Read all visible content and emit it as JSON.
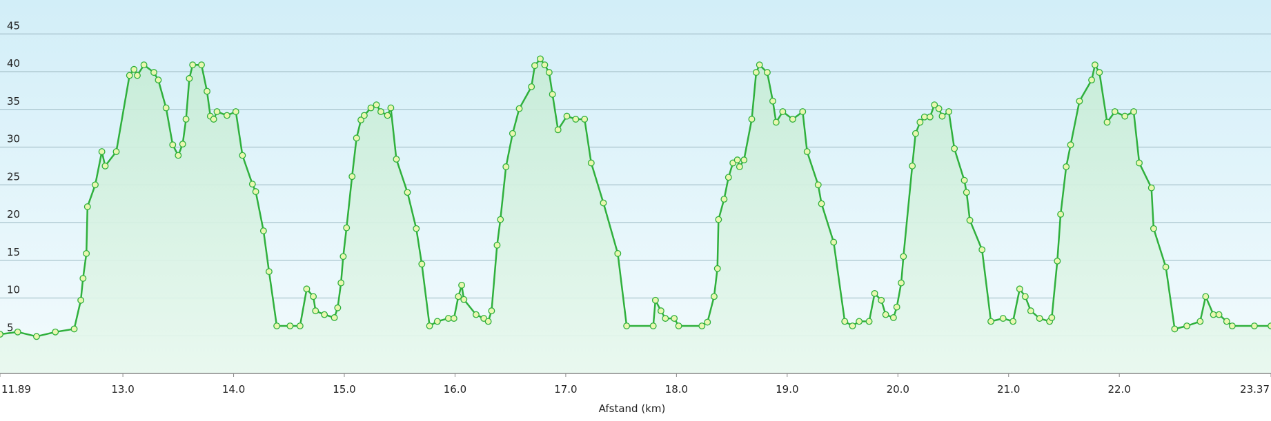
{
  "chart_data": {
    "type": "area",
    "xlabel": "Afstand  (km)",
    "x": [
      11.89,
      12.05,
      12.22,
      12.39,
      12.56,
      12.62,
      12.64,
      12.67,
      12.68,
      12.75,
      12.81,
      12.84,
      12.94,
      13.06,
      13.1,
      13.13,
      13.19,
      13.28,
      13.32,
      13.39,
      13.45,
      13.5,
      13.54,
      13.57,
      13.6,
      13.63,
      13.71,
      13.76,
      13.79,
      13.82,
      13.85,
      13.94,
      14.02,
      14.08,
      14.17,
      14.2,
      14.27,
      14.32,
      14.39,
      14.51,
      14.6,
      14.66,
      14.72,
      14.74,
      14.82,
      14.91,
      14.94,
      14.97,
      14.99,
      15.02,
      15.07,
      15.11,
      15.15,
      15.18,
      15.24,
      15.29,
      15.33,
      15.39,
      15.42,
      15.47,
      15.57,
      15.65,
      15.7,
      15.77,
      15.84,
      15.94,
      15.99,
      16.03,
      16.06,
      16.08,
      16.19,
      16.26,
      16.3,
      16.33,
      16.38,
      16.41,
      16.46,
      16.52,
      16.58,
      16.69,
      16.72,
      16.77,
      16.81,
      16.85,
      16.88,
      16.93,
      17.01,
      17.09,
      17.17,
      17.23,
      17.34,
      17.47,
      17.55,
      17.79,
      17.81,
      17.86,
      17.9,
      17.98,
      18.02,
      18.23,
      18.28,
      18.34,
      18.37,
      18.38,
      18.43,
      18.47,
      18.51,
      18.55,
      18.57,
      18.61,
      18.68,
      18.72,
      18.75,
      18.82,
      18.87,
      18.9,
      18.96,
      19.05,
      19.14,
      19.18,
      19.28,
      19.31,
      19.42,
      19.52,
      19.59,
      19.65,
      19.74,
      19.79,
      19.85,
      19.89,
      19.96,
      19.99,
      20.03,
      20.05,
      20.13,
      20.16,
      20.2,
      20.24,
      20.29,
      20.33,
      20.37,
      20.4,
      20.46,
      20.51,
      20.6,
      20.62,
      20.65,
      20.76,
      20.84,
      20.95,
      21.04,
      21.1,
      21.15,
      21.2,
      21.28,
      21.37,
      21.39,
      21.44,
      21.47,
      21.52,
      21.56,
      21.64,
      21.75,
      21.78,
      21.82,
      21.89,
      21.96,
      22.05,
      22.13,
      22.18,
      22.29,
      22.31,
      22.42,
      22.5,
      22.61,
      22.73,
      22.78,
      22.85,
      22.9,
      22.97,
      23.02,
      23.22,
      23.37
    ],
    "values": [
      5.2,
      5.5,
      4.9,
      5.5,
      5.9,
      9.7,
      12.6,
      15.9,
      22.1,
      25.0,
      29.4,
      27.5,
      29.4,
      39.5,
      40.3,
      39.5,
      40.9,
      39.9,
      38.9,
      35.2,
      30.3,
      28.9,
      30.4,
      33.7,
      39.1,
      40.9,
      40.9,
      37.4,
      34.1,
      33.7,
      34.7,
      34.2,
      34.7,
      28.9,
      25.1,
      24.1,
      18.9,
      13.5,
      6.3,
      6.3,
      6.3,
      11.2,
      10.2,
      8.3,
      7.8,
      7.4,
      8.7,
      12.0,
      15.5,
      19.3,
      26.1,
      31.2,
      33.6,
      34.2,
      35.2,
      35.6,
      34.7,
      34.2,
      35.2,
      28.4,
      24.0,
      19.2,
      14.5,
      6.3,
      6.9,
      7.3,
      7.3,
      10.2,
      11.7,
      9.8,
      7.8,
      7.3,
      6.9,
      8.3,
      17.0,
      20.4,
      27.4,
      31.8,
      35.1,
      38.0,
      40.8,
      41.7,
      40.9,
      39.9,
      37.0,
      32.3,
      34.1,
      33.7,
      33.7,
      27.9,
      22.6,
      15.9,
      6.3,
      6.3,
      9.7,
      8.3,
      7.3,
      7.3,
      6.3,
      6.3,
      6.8,
      10.2,
      13.9,
      20.4,
      23.1,
      26.0,
      27.9,
      28.3,
      27.4,
      28.3,
      33.7,
      39.9,
      40.9,
      39.9,
      36.1,
      33.3,
      34.7,
      33.7,
      34.7,
      29.4,
      25.0,
      22.5,
      17.4,
      6.9,
      6.3,
      6.9,
      6.9,
      10.6,
      9.7,
      7.8,
      7.4,
      8.8,
      12.0,
      15.5,
      27.5,
      31.8,
      33.3,
      34.0,
      34.0,
      35.6,
      35.1,
      34.1,
      34.7,
      29.8,
      25.6,
      24.0,
      20.3,
      16.4,
      6.9,
      7.3,
      6.9,
      11.2,
      10.2,
      8.3,
      7.3,
      6.9,
      7.4,
      14.9,
      21.1,
      27.4,
      30.3,
      36.1,
      38.9,
      40.9,
      39.9,
      33.3,
      34.7,
      34.1,
      34.7,
      27.9,
      24.6,
      19.2,
      14.1,
      5.9,
      6.3,
      6.9,
      10.2,
      7.8,
      7.8,
      6.9,
      6.3,
      6.3,
      6.3
    ],
    "color": "#2fb03c",
    "xlim": [
      11.89,
      23.37
    ],
    "xticks": [
      11.89,
      {
        "value": 13,
        "label": "13.0"
      },
      {
        "value": 14,
        "label": "14.0"
      },
      {
        "value": 15,
        "label": "15.0"
      },
      {
        "value": 16,
        "label": "16.0"
      },
      {
        "value": 17,
        "label": "17.0"
      },
      {
        "value": 18,
        "label": "18.0"
      },
      {
        "value": 19,
        "label": "19.0"
      },
      {
        "value": 20,
        "label": "20.0"
      },
      {
        "value": 21,
        "label": "21.0"
      },
      {
        "value": 22,
        "label": "22.0"
      },
      23.37
    ],
    "ylim": [
      0,
      49.5
    ],
    "yticks": [
      5,
      10,
      15,
      20,
      25,
      30,
      35,
      40,
      45
    ],
    "grid": true
  }
}
